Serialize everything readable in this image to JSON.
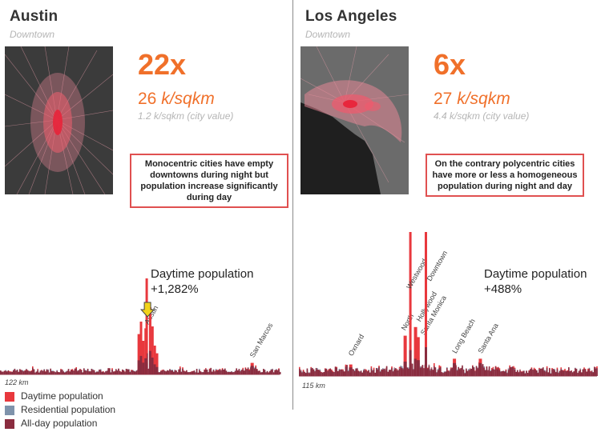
{
  "colors": {
    "accent": "#f0702a",
    "muted": "#b5b5b5",
    "box_border": "#e05050",
    "daytime": "#e8383d",
    "residential": "#7f93ab",
    "allday": "#8a2c3f"
  },
  "panels": [
    {
      "city": "Austin",
      "area": "Downtown",
      "ratio": "22x",
      "density_value": "26",
      "density_unit": "k/sqkm",
      "city_value": "1.2 k/sqkm (city value)",
      "note": "Monocentric cities have empty downtowns during night but population increase significantly during day",
      "stat_line1": "Daytime population",
      "stat_line2": "+1,282%",
      "distance": "122 km",
      "arrow_icon": "down-arrow-icon"
    },
    {
      "city": "Los Angeles",
      "area": "Downtown",
      "ratio": "6x",
      "density_value": "27",
      "density_unit": "k/sqkm",
      "city_value": "4.4 k/sqkm (city value)",
      "note": "On the contrary polycentric cities have more or less a homogeneous population during night and day",
      "stat_line1": "Daytime population",
      "stat_line2": "+488%",
      "distance": "115 km"
    }
  ],
  "legend": [
    {
      "label": "Daytime population",
      "color": "#e8383d"
    },
    {
      "label": "Residential population",
      "color": "#7f93ab"
    },
    {
      "label": "All-day population",
      "color": "#8a2c3f"
    }
  ],
  "chart_data": [
    {
      "type": "area",
      "title": "",
      "xlabel": "122 km",
      "ylabel": "",
      "series_names": [
        "Daytime population",
        "Residential population",
        "All-day population"
      ],
      "annotations": [
        "Austin",
        "San Marcos"
      ],
      "peaks": [
        {
          "x_km": 64,
          "daytime": 100,
          "residential": 12,
          "allday": 22,
          "label": "Austin"
        },
        {
          "x_km": 110,
          "daytime": 12,
          "residential": 8,
          "allday": 9,
          "label": "San Marcos"
        }
      ],
      "ylim": [
        0,
        100
      ]
    },
    {
      "type": "area",
      "title": "",
      "xlabel": "115 km",
      "ylabel": "",
      "series_names": [
        "Daytime population",
        "Residential population",
        "All-day population"
      ],
      "annotations": [
        "Oxnard",
        "North",
        "Westwood",
        "Hollywood",
        "Santa Monica",
        "Downtown",
        "Long Beach",
        "Santa Ana"
      ],
      "peaks": [
        {
          "x_km": 20,
          "daytime": 8,
          "residential": 5,
          "allday": 6,
          "label": "Oxnard"
        },
        {
          "x_km": 41,
          "daytime": 28,
          "residential": 7,
          "allday": 10,
          "label": "North"
        },
        {
          "x_km": 43,
          "daytime": 100,
          "residential": 9,
          "allday": 18,
          "label": "Westwood"
        },
        {
          "x_km": 45,
          "daytime": 34,
          "residential": 9,
          "allday": 12,
          "label": "Hollywood"
        },
        {
          "x_km": 46,
          "daytime": 27,
          "residential": 9,
          "allday": 11,
          "label": "Santa Monica"
        },
        {
          "x_km": 49,
          "daytime": 100,
          "residential": 10,
          "allday": 20,
          "label": "Downtown"
        },
        {
          "x_km": 60,
          "daytime": 12,
          "residential": 8,
          "allday": 9,
          "label": "Long Beach"
        },
        {
          "x_km": 70,
          "daytime": 12,
          "residential": 8,
          "allday": 9,
          "label": "Santa Ana"
        }
      ],
      "ylim": [
        0,
        100
      ]
    }
  ]
}
